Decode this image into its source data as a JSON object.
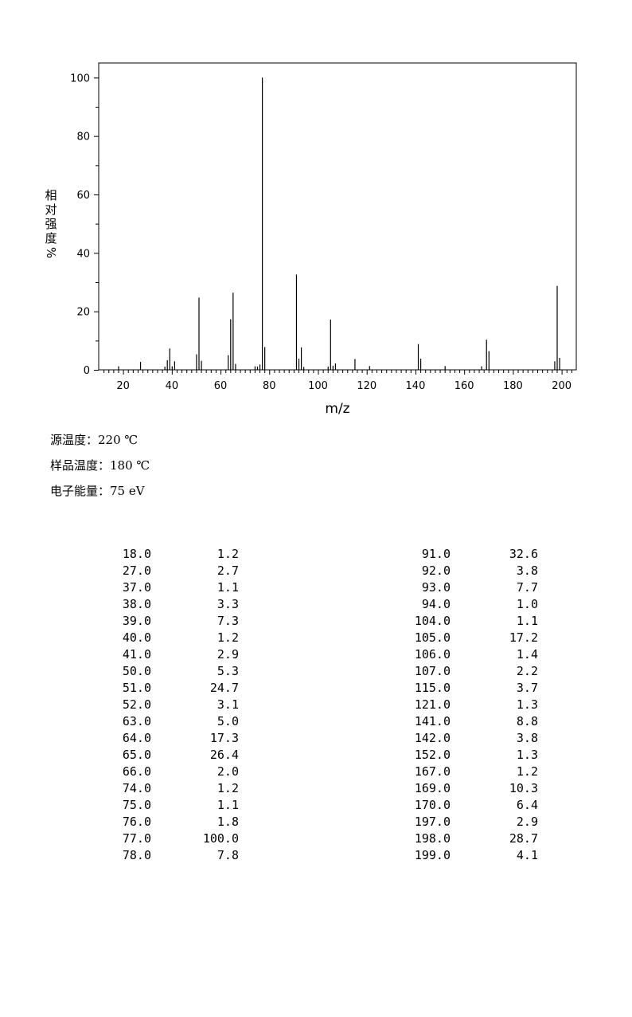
{
  "chart_data": {
    "type": "bar",
    "title": "",
    "xlabel": "m/z",
    "ylabel": "相对强度%",
    "xlim": [
      10,
      206
    ],
    "ylim": [
      0,
      105
    ],
    "x_ticks": [
      20,
      40,
      60,
      80,
      100,
      120,
      140,
      160,
      180,
      200
    ],
    "y_ticks": [
      0,
      20,
      40,
      60,
      80,
      100
    ],
    "grid": false,
    "bar_color": "#000000",
    "series": [
      {
        "x": [
          18,
          27,
          37,
          38,
          39,
          40,
          41,
          50,
          51,
          52,
          63,
          64,
          65,
          66,
          74,
          75,
          76,
          77,
          78,
          91,
          92,
          93,
          94,
          104,
          105,
          106,
          107,
          115,
          121,
          141,
          142,
          152,
          167,
          169,
          170,
          197,
          198,
          199
        ],
        "y": [
          1.2,
          2.7,
          1.1,
          3.3,
          7.3,
          1.2,
          2.9,
          5.3,
          24.7,
          3.1,
          5.0,
          17.3,
          26.4,
          2.0,
          1.2,
          1.1,
          1.8,
          100.0,
          7.8,
          32.6,
          3.8,
          7.7,
          1.0,
          1.1,
          17.2,
          1.4,
          2.2,
          3.7,
          1.3,
          8.8,
          3.8,
          1.3,
          1.2,
          10.3,
          6.4,
          2.9,
          28.7,
          4.1
        ]
      }
    ]
  },
  "conditions": [
    {
      "label": "源温度：",
      "value": "220 ℃"
    },
    {
      "label": "样品温度：",
      "value": "180 ℃"
    },
    {
      "label": "电子能量：",
      "value": "75 eV"
    }
  ],
  "peak_table": {
    "left": [
      [
        "18.0",
        "1.2"
      ],
      [
        "27.0",
        "2.7"
      ],
      [
        "37.0",
        "1.1"
      ],
      [
        "38.0",
        "3.3"
      ],
      [
        "39.0",
        "7.3"
      ],
      [
        "40.0",
        "1.2"
      ],
      [
        "41.0",
        "2.9"
      ],
      [
        "50.0",
        "5.3"
      ],
      [
        "51.0",
        "24.7"
      ],
      [
        "52.0",
        "3.1"
      ],
      [
        "63.0",
        "5.0"
      ],
      [
        "64.0",
        "17.3"
      ],
      [
        "65.0",
        "26.4"
      ],
      [
        "66.0",
        "2.0"
      ],
      [
        "74.0",
        "1.2"
      ],
      [
        "75.0",
        "1.1"
      ],
      [
        "76.0",
        "1.8"
      ],
      [
        "77.0",
        "100.0"
      ],
      [
        "78.0",
        "7.8"
      ]
    ],
    "right": [
      [
        "91.0",
        "32.6"
      ],
      [
        "92.0",
        "3.8"
      ],
      [
        "93.0",
        "7.7"
      ],
      [
        "94.0",
        "1.0"
      ],
      [
        "104.0",
        "1.1"
      ],
      [
        "105.0",
        "17.2"
      ],
      [
        "106.0",
        "1.4"
      ],
      [
        "107.0",
        "2.2"
      ],
      [
        "115.0",
        "3.7"
      ],
      [
        "121.0",
        "1.3"
      ],
      [
        "141.0",
        "8.8"
      ],
      [
        "142.0",
        "3.8"
      ],
      [
        "152.0",
        "1.3"
      ],
      [
        "167.0",
        "1.2"
      ],
      [
        "169.0",
        "10.3"
      ],
      [
        "170.0",
        "6.4"
      ],
      [
        "197.0",
        "2.9"
      ],
      [
        "198.0",
        "28.7"
      ],
      [
        "199.0",
        "4.1"
      ]
    ]
  }
}
